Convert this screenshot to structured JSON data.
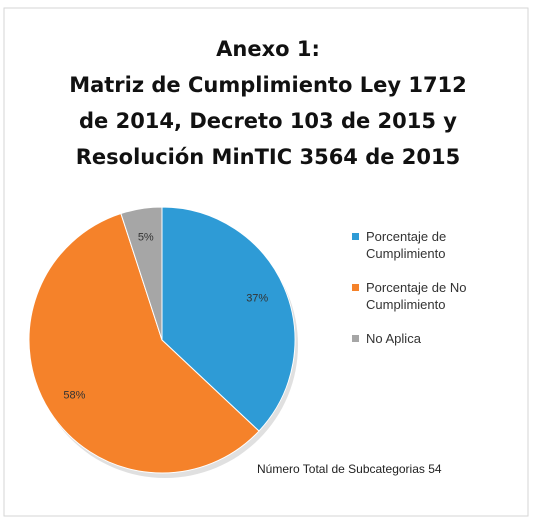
{
  "chart_data": {
    "type": "pie",
    "title": [
      "Anexo 1:",
      "Matriz de Cumplimiento Ley 1712",
      "de 2014, Decreto 103 de 2015 y",
      "Resolución MinTIC 3564 de 2015"
    ],
    "categories": [
      "Porcentaje de Cumplimiento",
      "Porcentaje de No Cumplimiento",
      "No Aplica"
    ],
    "values": [
      37,
      58,
      5
    ],
    "value_labels": [
      "37%",
      "58%",
      "5%"
    ],
    "colors": [
      "#2e9bd6",
      "#f5822a",
      "#a6a6a6"
    ],
    "annotation": "Número Total de Subcategorias 54"
  }
}
